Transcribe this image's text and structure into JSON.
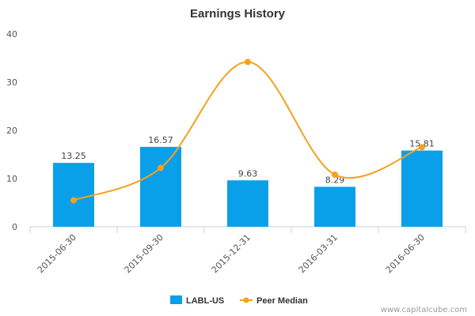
{
  "chart_data": {
    "type": "bar",
    "title": "Earnings History",
    "categories": [
      "2015-06-30",
      "2015-09-30",
      "2015-12-31",
      "2016-03-31",
      "2016-06-30"
    ],
    "series": [
      {
        "name": "LABL-US",
        "type": "bar",
        "values": [
          13.25,
          16.57,
          9.63,
          8.29,
          15.81
        ],
        "labels": [
          "13.25",
          "16.57",
          "9.63",
          "8.29",
          "15.81"
        ],
        "color": "#0aa0e9"
      },
      {
        "name": "Peer Median",
        "type": "line",
        "smooth": true,
        "values": [
          5.5,
          12.2,
          34.2,
          10.8,
          16.5
        ],
        "color": "#f5a11b"
      }
    ],
    "ylim": [
      0,
      40
    ],
    "yticks": [
      "0",
      "10",
      "20",
      "30",
      "40"
    ],
    "grid": false,
    "legend": "bottom-center"
  },
  "watermark": "www.capitalcube.com"
}
